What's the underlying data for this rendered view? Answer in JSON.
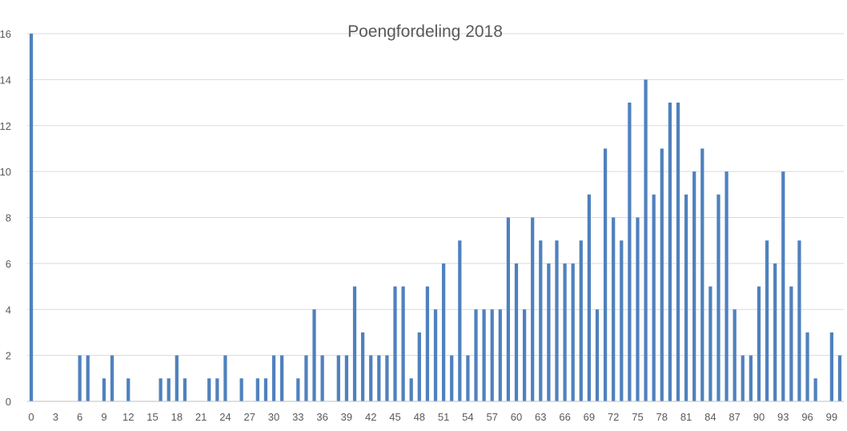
{
  "chart_data": {
    "type": "bar",
    "title": "Poengfordeling 2018",
    "xlabel": "",
    "ylabel": "",
    "ylim": [
      0,
      16
    ],
    "y_ticks": [
      0,
      2,
      4,
      6,
      8,
      10,
      12,
      14,
      16
    ],
    "x_tick_labels": [
      "0",
      "3",
      "6",
      "9",
      "12",
      "15",
      "18",
      "21",
      "24",
      "27",
      "30",
      "33",
      "36",
      "39",
      "42",
      "45",
      "48",
      "51",
      "54",
      "57",
      "60",
      "63",
      "66",
      "69",
      "72",
      "75",
      "78",
      "81",
      "84",
      "87",
      "90",
      "93",
      "96",
      "99"
    ],
    "grid": true,
    "bar_color": "#4f81bd",
    "categories": [
      0,
      1,
      2,
      3,
      4,
      5,
      6,
      7,
      8,
      9,
      10,
      11,
      12,
      13,
      14,
      15,
      16,
      17,
      18,
      19,
      20,
      21,
      22,
      23,
      24,
      25,
      26,
      27,
      28,
      29,
      30,
      31,
      32,
      33,
      34,
      35,
      36,
      37,
      38,
      39,
      40,
      41,
      42,
      43,
      44,
      45,
      46,
      47,
      48,
      49,
      50,
      51,
      52,
      53,
      54,
      55,
      56,
      57,
      58,
      59,
      60,
      61,
      62,
      63,
      64,
      65,
      66,
      67,
      68,
      69,
      70,
      71,
      72,
      73,
      74,
      75,
      76,
      77,
      78,
      79,
      80,
      81,
      82,
      83,
      84,
      85,
      86,
      87,
      88,
      89,
      90,
      91,
      92,
      93,
      94,
      95,
      96,
      97,
      98,
      99,
      100
    ],
    "values": [
      16,
      0,
      0,
      0,
      0,
      0,
      2,
      2,
      0,
      1,
      2,
      0,
      1,
      0,
      0,
      0,
      1,
      1,
      2,
      1,
      0,
      0,
      1,
      1,
      2,
      0,
      1,
      0,
      1,
      1,
      2,
      2,
      0,
      1,
      2,
      4,
      2,
      0,
      2,
      2,
      5,
      3,
      2,
      2,
      2,
      5,
      5,
      1,
      3,
      5,
      4,
      6,
      2,
      7,
      2,
      4,
      4,
      4,
      4,
      8,
      6,
      4,
      8,
      7,
      6,
      7,
      6,
      6,
      7,
      9,
      4,
      11,
      8,
      7,
      13,
      8,
      14,
      9,
      11,
      13,
      13,
      9,
      10,
      11,
      5,
      9,
      10,
      4,
      2,
      2,
      5,
      7,
      6,
      10,
      5,
      7,
      3,
      1,
      0,
      3,
      2
    ]
  }
}
